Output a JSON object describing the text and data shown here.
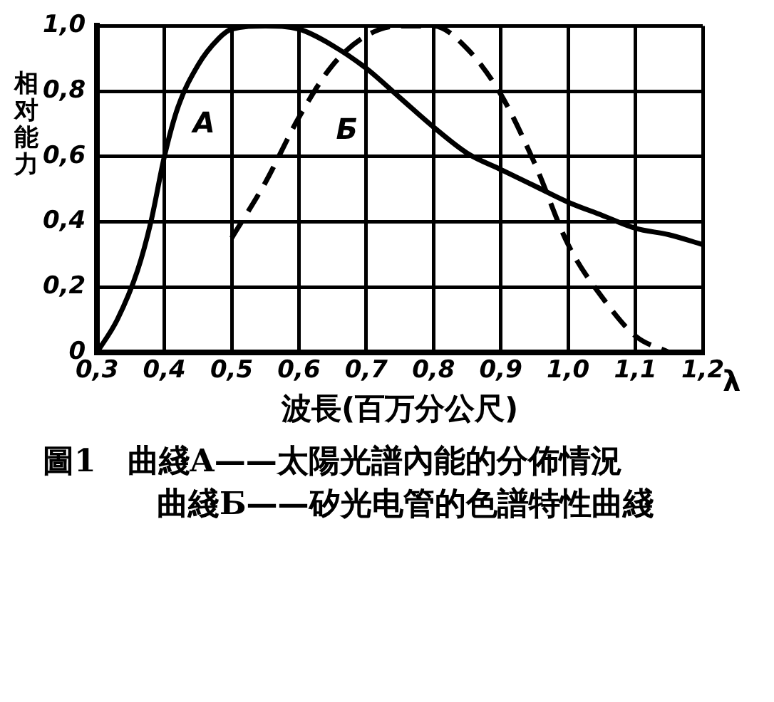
{
  "chart_data": {
    "type": "line",
    "xlabel": "波長(百万分公尺)",
    "ylabel": "相对能力",
    "xlim": [
      0.3,
      1.2
    ],
    "ylim": [
      0,
      1.0
    ],
    "xticks": [
      {
        "value": 0.3,
        "label": "0,3"
      },
      {
        "value": 0.4,
        "label": "0,4"
      },
      {
        "value": 0.5,
        "label": "0,5"
      },
      {
        "value": 0.6,
        "label": "0,6"
      },
      {
        "value": 0.7,
        "label": "0,7"
      },
      {
        "value": 0.8,
        "label": "0,8"
      },
      {
        "value": 0.9,
        "label": "0,9"
      },
      {
        "value": 1.0,
        "label": "1,0"
      },
      {
        "value": 1.1,
        "label": "1,1"
      },
      {
        "value": 1.2,
        "label": "1,2"
      }
    ],
    "yticks": [
      0,
      {
        "value": 0.2,
        "label": "0,2"
      },
      {
        "value": 0.4,
        "label": "0,4"
      },
      {
        "value": 0.6,
        "label": "0,6"
      },
      {
        "value": 0.8,
        "label": "0,8"
      },
      {
        "value": 1.0,
        "label": "1,0"
      }
    ],
    "series": [
      {
        "name": "A",
        "color": "#000000",
        "line_style": "solid",
        "x": [
          0.3,
          0.33,
          0.36,
          0.38,
          0.4,
          0.42,
          0.45,
          0.48,
          0.5,
          0.55,
          0.6,
          0.65,
          0.7,
          0.75,
          0.8,
          0.85,
          0.9,
          0.95,
          1.0,
          1.05,
          1.1,
          1.15,
          1.2
        ],
        "values": [
          0,
          0.1,
          0.25,
          0.4,
          0.6,
          0.75,
          0.88,
          0.96,
          0.99,
          1.0,
          0.99,
          0.94,
          0.87,
          0.78,
          0.69,
          0.61,
          0.56,
          0.51,
          0.46,
          0.42,
          0.38,
          0.36,
          0.33
        ]
      },
      {
        "name": "Б",
        "color": "#000000",
        "line_style": "dashed",
        "x": [
          0.5,
          0.55,
          0.6,
          0.65,
          0.7,
          0.75,
          0.8,
          0.85,
          0.9,
          0.95,
          1.0,
          1.05,
          1.1,
          1.15
        ],
        "values": [
          0.35,
          0.52,
          0.72,
          0.88,
          0.97,
          1.0,
          1.0,
          0.93,
          0.79,
          0.58,
          0.33,
          0.17,
          0.05,
          0
        ]
      }
    ],
    "annotations": [
      "λ",
      "圖1　曲綫A——太陽光譜內能的分佈情況",
      "曲綫Б——矽光电管的色譜特性曲綫"
    ],
    "grid": true,
    "legend": false,
    "marker": "none"
  }
}
